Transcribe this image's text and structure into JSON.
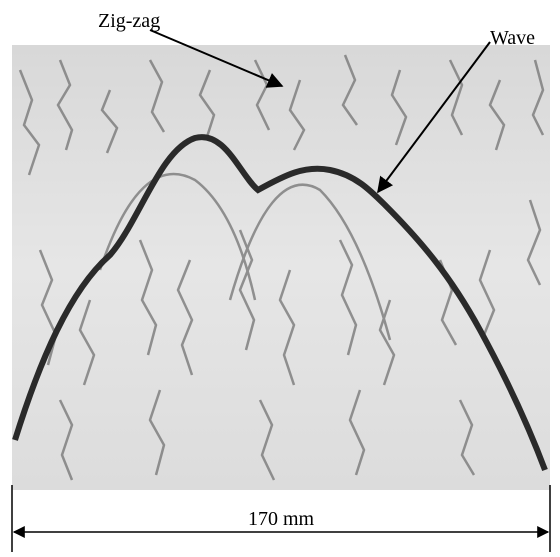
{
  "labels": {
    "zigzag": "Zig-zag",
    "wave": "Wave"
  },
  "scale_bar": {
    "label": "170 mm"
  }
}
